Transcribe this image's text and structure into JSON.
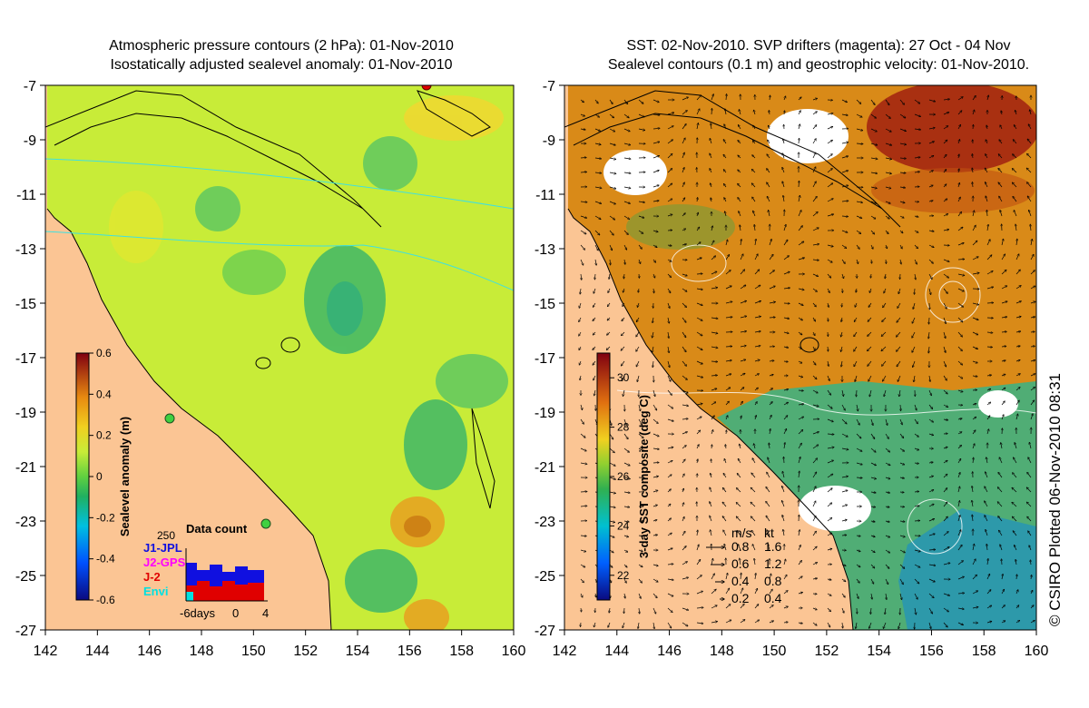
{
  "left_panel": {
    "title_line1": "Atmospheric pressure contours (2 hPa): 01-Nov-2010",
    "title_line2": "Isostatically adjusted sealevel anomaly: 01-Nov-2010",
    "x_ticks": [
      "142",
      "144",
      "146",
      "148",
      "150",
      "152",
      "154",
      "156",
      "158",
      "160"
    ],
    "y_ticks": [
      "-7",
      "-9",
      "-11",
      "-13",
      "-15",
      "-17",
      "-19",
      "-21",
      "-23",
      "-25",
      "-27"
    ],
    "colorbar": {
      "label": "Sealevel anomaly (m)",
      "ticks": [
        "0.6",
        "0.4",
        "0.2",
        "0",
        "-0.2",
        "-0.4",
        "-0.6"
      ],
      "range": [
        -0.6,
        0.6
      ]
    },
    "data_count": {
      "title": "Data count",
      "max_label": "250",
      "legend": [
        {
          "name": "J1-JPL",
          "color": "#1010e0"
        },
        {
          "name": "J2-GPS",
          "color": "#ff00ff"
        },
        {
          "name": "J-2",
          "color": "#e00000"
        },
        {
          "name": "Envi",
          "color": "#00e0e0"
        }
      ],
      "axis_labels": [
        "-6days",
        "0",
        "4"
      ]
    }
  },
  "right_panel": {
    "title_line1": "SST: 02-Nov-2010. SVP drifters (magenta): 27 Oct - 04 Nov",
    "title_line2": "Sealevel contours (0.1 m) and geostrophic velocity: 01-Nov-2010.",
    "x_ticks": [
      "142",
      "144",
      "146",
      "148",
      "150",
      "152",
      "154",
      "156",
      "158",
      "160"
    ],
    "y_ticks": [
      "-7",
      "-9",
      "-11",
      "-13",
      "-15",
      "-17",
      "-19",
      "-21",
      "-23",
      "-25",
      "-27"
    ],
    "colorbar": {
      "label": "3-day SST composite (deg C)",
      "ticks": [
        "30",
        "28",
        "26",
        "24",
        "22"
      ],
      "range": [
        21,
        31
      ]
    },
    "velocity_key": {
      "header_ms": "m/s",
      "header_kt": "kt",
      "rows": [
        {
          "ms": "0.8",
          "kt": "1.6"
        },
        {
          "ms": "0.6",
          "kt": "1.2"
        },
        {
          "ms": "0.4",
          "kt": "0.8"
        },
        {
          "ms": "0.2",
          "kt": "0.4"
        }
      ]
    }
  },
  "credit": "© CSIRO Plotted 06-Nov-2010 08:31",
  "colors": {
    "land": "#fbc594",
    "ocean_left": "#c8ec38",
    "ocean_right": "#d98a18",
    "cloud": "#ffffff"
  }
}
